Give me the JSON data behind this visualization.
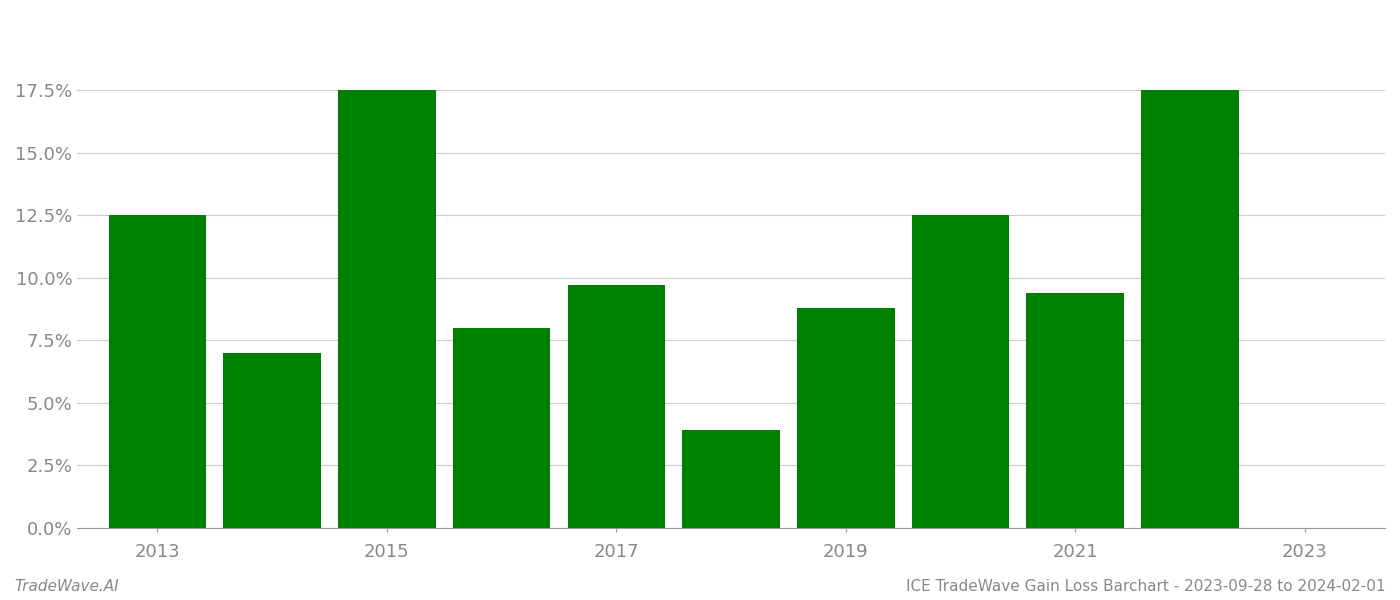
{
  "years": [
    2013,
    2014,
    2015,
    2016,
    2017,
    2018,
    2019,
    2020,
    2021,
    2022
  ],
  "values": [
    0.125,
    0.07,
    0.175,
    0.08,
    0.097,
    0.039,
    0.088,
    0.125,
    0.094,
    0.175
  ],
  "bar_color": "#008000",
  "background_color": "#ffffff",
  "grid_color": "#cccccc",
  "ytick_labels": [
    "0.0%",
    "2.5%",
    "5.0%",
    "7.5%",
    "10.0%",
    "12.5%",
    "15.0%",
    "17.5%"
  ],
  "ytick_values": [
    0.0,
    0.025,
    0.05,
    0.075,
    0.1,
    0.125,
    0.15,
    0.175
  ],
  "xtick_values": [
    2013,
    2015,
    2017,
    2019,
    2021,
    2023
  ],
  "xtick_labels": [
    "2013",
    "2015",
    "2017",
    "2019",
    "2021",
    "2023"
  ],
  "ylim": [
    0.0,
    0.205
  ],
  "xlim": [
    2012.3,
    2023.7
  ],
  "footer_left": "TradeWave.AI",
  "footer_right": "ICE TradeWave Gain Loss Barchart - 2023-09-28 to 2024-02-01",
  "bar_width": 0.85,
  "tick_fontsize": 13,
  "footer_fontsize": 11,
  "spine_color": "#999999",
  "tick_color": "#888888",
  "grid_linewidth": 0.8
}
